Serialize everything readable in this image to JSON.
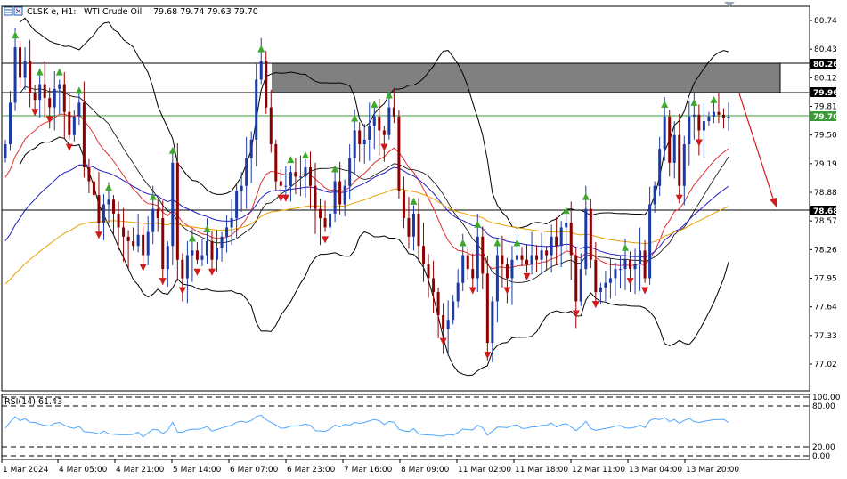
{
  "header": {
    "symbol": "CLSK e, H1:",
    "name": "WTI Crude Oil",
    "ohlc": "79.68 79.74 79.63 79.70"
  },
  "rsi_label": "RSI(14) 61.43",
  "colors": {
    "bull_candle": "#1a3aa8",
    "bear_candle": "#8b0000",
    "bb": "#000000",
    "ma_red": "#e03030",
    "ma_blue": "#2020c0",
    "ma_orange": "#e8a000",
    "rsi_line": "#4da6ff",
    "green_arrow": "#3ea82e",
    "red_arrow": "#d21a1a",
    "current_line": "#3a9a3a",
    "resistance_zone": "#808080"
  },
  "chart_data": {
    "type": "candlestick",
    "symbol": "CLSK e",
    "timeframe": "H1",
    "instrument": "WTI Crude Oil",
    "ylim": [
      76.82,
      80.84
    ],
    "price_ticks": [
      "80.74",
      "80.43",
      "80.12",
      "79.81",
      "79.50",
      "79.19",
      "78.88",
      "78.57",
      "78.26",
      "77.95",
      "77.64",
      "77.33",
      "77.02"
    ],
    "x_ticks": [
      "1 Mar 2024",
      "4 Mar 05:00",
      "4 Mar 21:00",
      "5 Mar 14:00",
      "6 Mar 07:00",
      "6 Mar 23:00",
      "7 Mar 16:00",
      "8 Mar 09:00",
      "11 Mar 02:00",
      "11 Mar 18:00",
      "12 Mar 11:00",
      "13 Mar 04:00",
      "13 Mar 20:00"
    ],
    "horizontal_levels": [
      {
        "label": "80.26",
        "value": 80.26
      },
      {
        "label": "79.96",
        "value": 79.96
      },
      {
        "label": "79.70",
        "value": 79.7,
        "current": true
      },
      {
        "label": "78.68",
        "value": 78.68
      }
    ],
    "resistance_zone": {
      "from": 79.96,
      "to": 80.26
    },
    "close": [
      79.4,
      79.85,
      80.45,
      80.12,
      80.3,
      79.95,
      79.88,
      80.05,
      79.9,
      79.8,
      80.0,
      80.05,
      79.75,
      79.5,
      79.7,
      79.85,
      79.15,
      79.0,
      78.85,
      78.55,
      78.75,
      78.8,
      78.65,
      78.5,
      78.4,
      78.35,
      78.3,
      78.42,
      78.2,
      78.45,
      78.7,
      78.6,
      78.05,
      78.3,
      79.2,
      78.15,
      77.95,
      78.2,
      78.25,
      78.15,
      78.2,
      78.35,
      78.15,
      78.28,
      78.4,
      78.5,
      78.6,
      78.9,
      78.95,
      79.25,
      79.45,
      80.1,
      80.3,
      79.8,
      79.4,
      79.0,
      78.95,
      78.95,
      79.1,
      79.05,
      79.05,
      79.15,
      78.95,
      78.7,
      78.6,
      78.5,
      78.65,
      79.0,
      78.75,
      78.95,
      79.25,
      79.55,
      79.4,
      79.45,
      79.6,
      79.7,
      79.55,
      79.5,
      79.8,
      79.7,
      78.9,
      78.6,
      78.4,
      78.65,
      78.3,
      78.1,
      77.95,
      77.8,
      77.55,
      77.4,
      77.5,
      77.7,
      77.9,
      78.2,
      78.05,
      77.95,
      78.4,
      78.0,
      77.25,
      77.7,
      78.2,
      78.1,
      77.95,
      78.15,
      78.2,
      78.15,
      78.1,
      78.2,
      78.15,
      78.25,
      78.2,
      78.4,
      78.3,
      78.5,
      78.55,
      78.2,
      77.7,
      78.05,
      78.7,
      78.15,
      77.8,
      77.85,
      77.9,
      77.95,
      78.05,
      78.05,
      78.15,
      78.05,
      78.1,
      78.25,
      77.95,
      78.75,
      78.95,
      79.35,
      79.7,
      79.2,
      79.5,
      78.95,
      79.4,
      79.7,
      79.72,
      79.55,
      79.65,
      79.7,
      79.75,
      79.72,
      79.68,
      79.7
    ]
  }
}
